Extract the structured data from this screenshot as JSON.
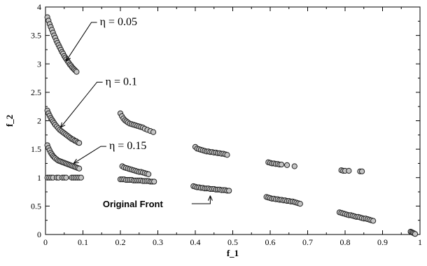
{
  "chart_data": {
    "type": "scatter",
    "title": "",
    "xlabel": "f_1",
    "ylabel": "f_2",
    "xlim": [
      0,
      1
    ],
    "ylim": [
      0,
      4
    ],
    "xticks": [
      0,
      0.1,
      0.2,
      0.3,
      0.4,
      0.5,
      0.6,
      0.7,
      0.8,
      0.9,
      1
    ],
    "yticks": [
      0,
      0.5,
      1,
      1.5,
      2,
      2.5,
      3,
      3.5,
      4
    ],
    "xtick_labels": [
      "0",
      "0.1",
      "0.2",
      "0.3",
      "0.4",
      "0.5",
      "0.6",
      "0.7",
      "0.8",
      "0.9",
      "1"
    ],
    "ytick_labels": [
      "0",
      "0.5",
      "1",
      "1.5",
      "2",
      "2.5",
      "3",
      "3.5",
      "4"
    ],
    "grid": false,
    "colors": {
      "marker_fill": "#c4c4c4",
      "marker_edge": "#222222"
    },
    "series": [
      {
        "x": [
          0.005,
          0.008,
          0.011,
          0.014,
          0.017,
          0.02,
          0.023,
          0.026,
          0.029,
          0.032,
          0.035,
          0.038,
          0.041,
          0.044,
          0.047,
          0.05,
          0.053,
          0.056,
          0.059,
          0.062,
          0.065,
          0.068,
          0.071,
          0.074,
          0.077,
          0.08,
          0.083
        ],
        "y": [
          3.82,
          3.76,
          3.7,
          3.65,
          3.6,
          3.55,
          3.5,
          3.46,
          3.41,
          3.37,
          3.33,
          3.29,
          3.25,
          3.21,
          3.18,
          3.14,
          3.11,
          3.08,
          3.05,
          3.02,
          2.99,
          2.97,
          2.94,
          2.92,
          2.9,
          2.88,
          2.86
        ]
      },
      {
        "x": [
          0.005,
          0.008,
          0.011,
          0.014,
          0.017,
          0.02,
          0.023,
          0.026,
          0.03,
          0.034,
          0.038,
          0.042,
          0.046,
          0.05,
          0.054,
          0.058,
          0.062,
          0.066,
          0.07,
          0.074,
          0.078,
          0.082,
          0.086,
          0.09
        ],
        "y": [
          2.18,
          2.13,
          2.09,
          2.05,
          2.02,
          1.99,
          1.96,
          1.93,
          1.9,
          1.87,
          1.84,
          1.82,
          1.8,
          1.78,
          1.76,
          1.74,
          1.72,
          1.7,
          1.68,
          1.67,
          1.65,
          1.64,
          1.62,
          1.61
        ],
        "xs2": [
          0.2,
          0.204,
          0.208,
          0.212,
          0.216,
          0.22,
          0.225,
          0.23,
          0.235,
          0.24,
          0.245,
          0.25,
          0.255,
          0.26,
          0.265,
          0.272,
          0.28,
          0.288
        ],
        "ys2": [
          2.13,
          2.08,
          2.04,
          2.01,
          1.99,
          1.97,
          1.95,
          1.94,
          1.93,
          1.92,
          1.91,
          1.9,
          1.89,
          1.88,
          1.86,
          1.84,
          1.82,
          1.8
        ]
      },
      {
        "x": [
          0.005,
          0.008,
          0.011,
          0.014,
          0.017,
          0.02,
          0.023,
          0.026,
          0.03,
          0.034,
          0.038,
          0.042,
          0.046,
          0.05,
          0.054,
          0.058,
          0.062,
          0.066,
          0.07,
          0.074,
          0.078,
          0.082,
          0.086,
          0.09
        ],
        "y": [
          1.57,
          1.52,
          1.48,
          1.44,
          1.41,
          1.38,
          1.36,
          1.34,
          1.32,
          1.3,
          1.29,
          1.28,
          1.27,
          1.26,
          1.25,
          1.24,
          1.23,
          1.22,
          1.21,
          1.2,
          1.19,
          1.18,
          1.17,
          1.16
        ]
      },
      {
        "x": [
          0.005,
          0.01,
          0.015,
          0.02,
          0.03,
          0.035,
          0.045,
          0.05,
          0.055,
          0.07,
          0.075,
          0.08,
          0.085,
          0.09,
          0.095
        ],
        "y": [
          1.0,
          1.0,
          1.0,
          1.0,
          1.0,
          1.0,
          1.0,
          1.0,
          1.0,
          1.0,
          1.0,
          1.0,
          1.0,
          1.0,
          1.0
        ]
      },
      {
        "x": [
          0.205,
          0.21,
          0.215,
          0.22,
          0.225,
          0.23,
          0.235,
          0.24,
          0.245,
          0.25,
          0.255,
          0.26,
          0.265,
          0.27,
          0.275
        ],
        "y": [
          1.2,
          1.18,
          1.17,
          1.16,
          1.15,
          1.14,
          1.13,
          1.12,
          1.11,
          1.1,
          1.1,
          1.09,
          1.08,
          1.07,
          1.06
        ]
      },
      {
        "x": [
          0.2,
          0.205,
          0.21,
          0.215,
          0.22,
          0.225,
          0.23,
          0.235,
          0.24,
          0.245,
          0.25,
          0.255,
          0.26,
          0.265,
          0.27,
          0.275,
          0.28,
          0.285,
          0.29
        ],
        "y": [
          0.97,
          0.97,
          0.97,
          0.96,
          0.96,
          0.96,
          0.96,
          0.95,
          0.95,
          0.95,
          0.95,
          0.95,
          0.94,
          0.94,
          0.94,
          0.94,
          0.93,
          0.93,
          0.93
        ]
      },
      {
        "x": [
          0.4,
          0.405,
          0.41,
          0.415,
          0.42,
          0.425,
          0.43,
          0.435,
          0.44,
          0.445,
          0.45,
          0.455,
          0.46,
          0.465,
          0.47,
          0.475,
          0.48,
          0.485
        ],
        "y": [
          1.54,
          1.51,
          1.5,
          1.49,
          1.48,
          1.47,
          1.46,
          1.46,
          1.45,
          1.45,
          1.44,
          1.44,
          1.43,
          1.43,
          1.42,
          1.42,
          1.41,
          1.4
        ]
      },
      {
        "x": [
          0.395,
          0.4,
          0.405,
          0.41,
          0.415,
          0.42,
          0.425,
          0.43,
          0.435,
          0.44,
          0.445,
          0.45,
          0.455,
          0.46,
          0.465,
          0.47,
          0.475,
          0.48,
          0.485,
          0.49
        ],
        "y": [
          0.85,
          0.84,
          0.83,
          0.83,
          0.82,
          0.82,
          0.81,
          0.81,
          0.81,
          0.8,
          0.8,
          0.8,
          0.79,
          0.79,
          0.79,
          0.78,
          0.78,
          0.78,
          0.77,
          0.77
        ]
      },
      {
        "x": [
          0.595,
          0.6,
          0.605,
          0.61,
          0.615,
          0.62,
          0.625,
          0.63,
          0.645,
          0.665
        ],
        "y": [
          1.27,
          1.26,
          1.25,
          1.25,
          1.24,
          1.24,
          1.23,
          1.23,
          1.22,
          1.2
        ]
      },
      {
        "x": [
          0.59,
          0.595,
          0.6,
          0.605,
          0.61,
          0.615,
          0.62,
          0.625,
          0.63,
          0.635,
          0.64,
          0.645,
          0.65,
          0.655,
          0.66,
          0.665,
          0.67,
          0.675,
          0.68
        ],
        "y": [
          0.66,
          0.65,
          0.64,
          0.63,
          0.63,
          0.62,
          0.62,
          0.61,
          0.61,
          0.6,
          0.6,
          0.59,
          0.59,
          0.58,
          0.58,
          0.57,
          0.56,
          0.55,
          0.54
        ]
      },
      {
        "x": [
          0.79,
          0.795,
          0.8,
          0.81,
          0.84,
          0.845
        ],
        "y": [
          1.13,
          1.12,
          1.12,
          1.12,
          1.11,
          1.11
        ]
      },
      {
        "x": [
          0.785,
          0.79,
          0.795,
          0.8,
          0.805,
          0.81,
          0.815,
          0.82,
          0.825,
          0.83,
          0.835,
          0.84,
          0.845,
          0.85,
          0.855,
          0.86,
          0.865,
          0.87,
          0.875
        ],
        "y": [
          0.39,
          0.38,
          0.37,
          0.36,
          0.35,
          0.34,
          0.34,
          0.33,
          0.32,
          0.31,
          0.31,
          0.3,
          0.29,
          0.28,
          0.28,
          0.27,
          0.26,
          0.25,
          0.24
        ]
      },
      {
        "x": [
          0.975,
          0.978,
          0.981,
          0.984,
          0.987
        ],
        "y": [
          0.05,
          0.04,
          0.03,
          0.02,
          0.01
        ]
      }
    ],
    "annotations": [
      {
        "text": "η = 0.05",
        "x": 0.145,
        "y": 3.68,
        "arrow_to": [
          0.055,
          3.05
        ]
      },
      {
        "text": "η = 0.1",
        "x": 0.16,
        "y": 2.63,
        "arrow_to": [
          0.04,
          1.88
        ]
      },
      {
        "text": "η = 0.15",
        "x": 0.17,
        "y": 1.5,
        "arrow_to": [
          0.075,
          1.25
        ]
      },
      {
        "text": "Original Front",
        "x": 0.153,
        "y": 0.48,
        "arrow_to": [
          0.44,
          0.78
        ],
        "bold": true
      }
    ]
  }
}
